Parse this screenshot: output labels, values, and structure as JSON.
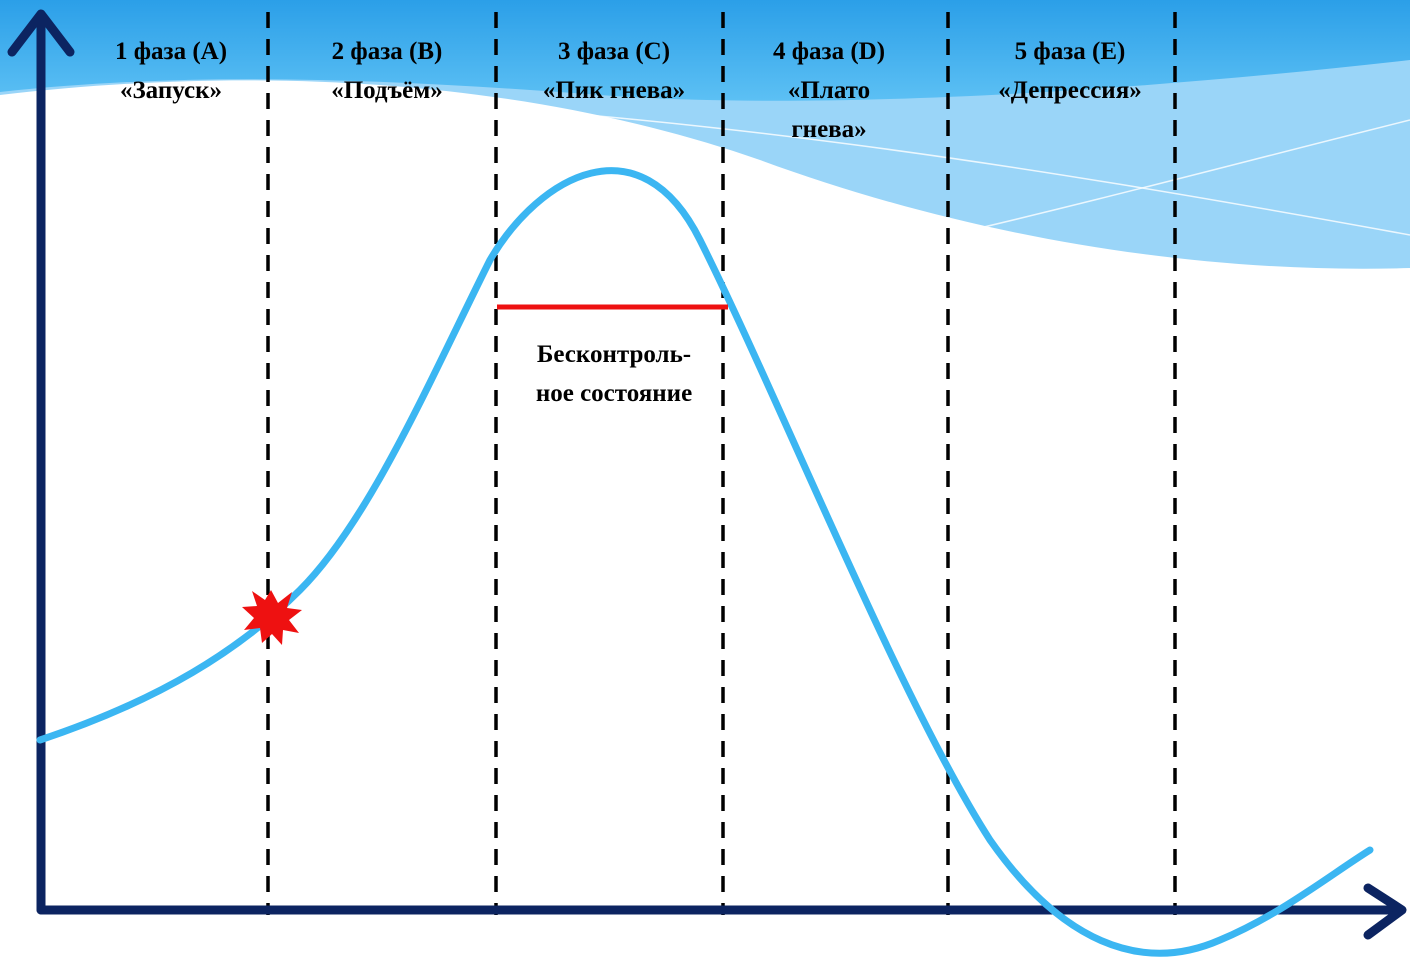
{
  "phases": [
    {
      "number_line": "1 фаза (A)",
      "name_lines": [
        "«Запуск»"
      ]
    },
    {
      "number_line": "2 фаза (B)",
      "name_lines": [
        "«Подъём»"
      ]
    },
    {
      "number_line": "3 фаза (C)",
      "name_lines": [
        "«Пик гнева»"
      ]
    },
    {
      "number_line": "4 фаза (D)",
      "name_lines": [
        "«Плато",
        "гнева»"
      ]
    },
    {
      "number_line": "5 фаза (E)",
      "name_lines": [
        "«Депрессия»"
      ]
    }
  ],
  "annotation": {
    "lines": [
      "Бесконтроль-",
      "ное состояние"
    ]
  },
  "colors": {
    "header_wave": "#3aaaee",
    "header_wave_light": "#8fd0f7",
    "curve": "#3bb6f2",
    "axes": "#0c2461",
    "threshold_line": "#ee1111",
    "trigger_star": "#ee1111",
    "dividers": "#000000"
  },
  "icons": {
    "trigger": "explosion-star-icon"
  }
}
